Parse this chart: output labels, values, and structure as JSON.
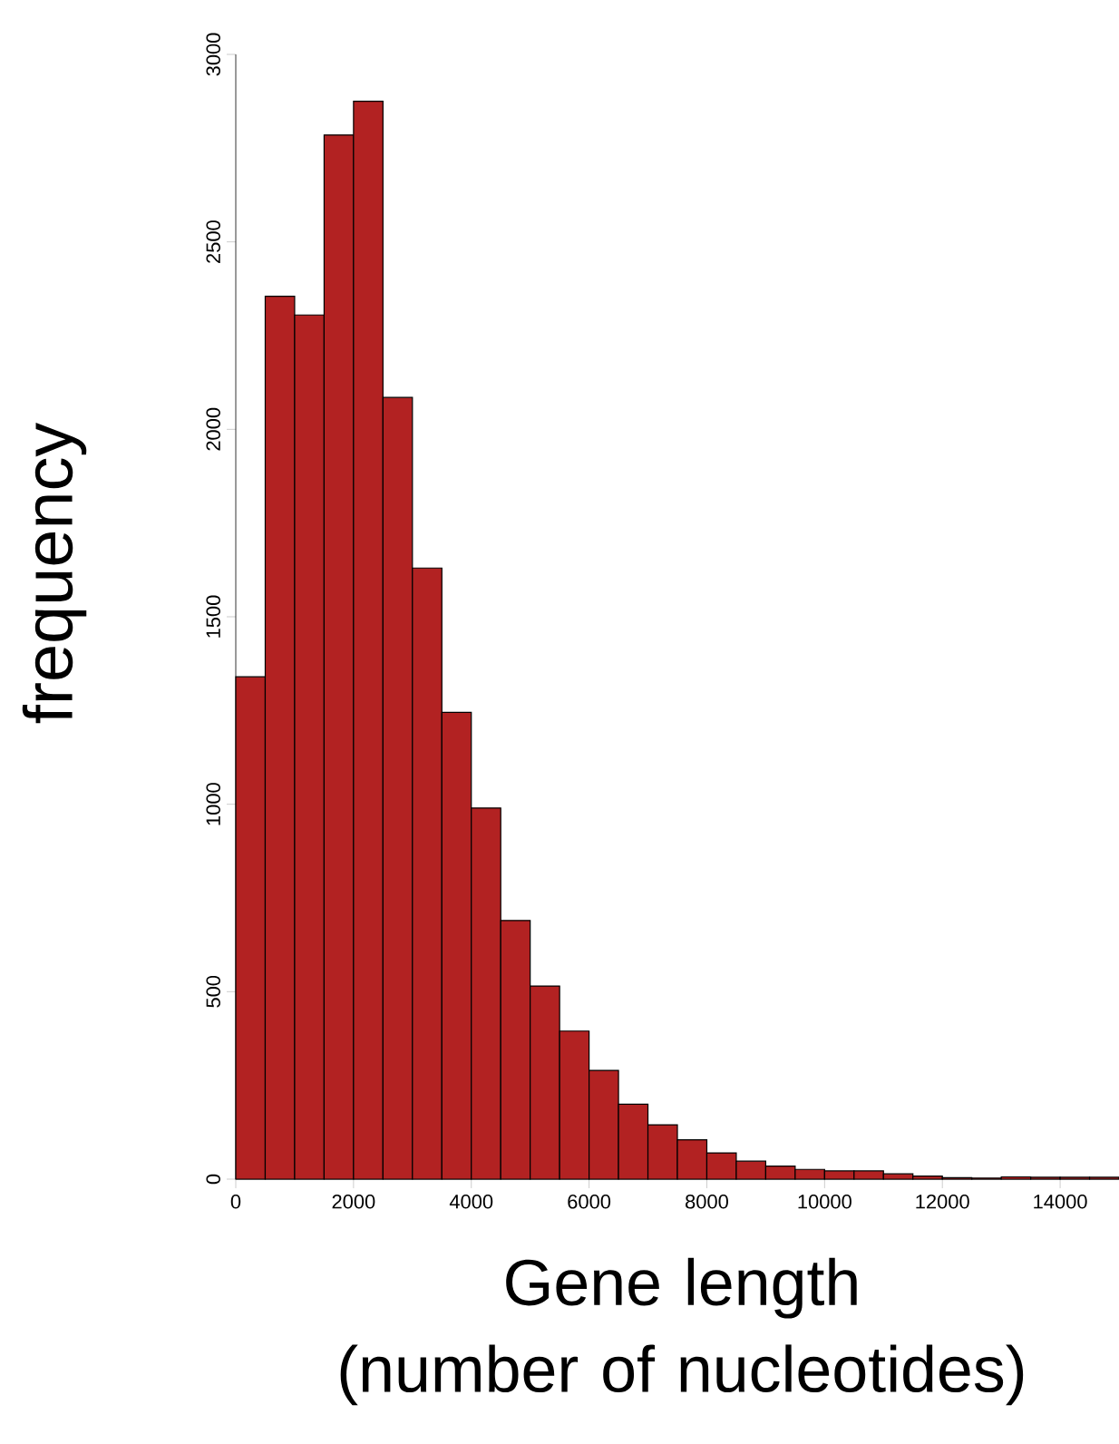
{
  "chart_data": {
    "type": "histogram",
    "xlabel": "Gene length\n(number of nucleotides)",
    "ylabel": "frequency",
    "bins": [
      0,
      500,
      1000,
      1500,
      2000,
      2500,
      3000,
      3500,
      4000,
      4500,
      5000,
      5500,
      6000,
      6500,
      7000,
      7500,
      8000,
      8500,
      9000,
      9500,
      10000,
      10500,
      11000,
      11500,
      12000,
      12500,
      13000,
      13500,
      14000,
      14500,
      15000
    ],
    "values": [
      1340,
      2355,
      2305,
      2785,
      2875,
      2085,
      1630,
      1245,
      990,
      690,
      515,
      395,
      290,
      200,
      145,
      105,
      70,
      48,
      35,
      26,
      22,
      22,
      14,
      8,
      4,
      3,
      6,
      5,
      5,
      5
    ],
    "color": "#b22222",
    "xlim": [
      0,
      15000
    ],
    "ylim": [
      0,
      3000
    ],
    "xticks": [
      0,
      2000,
      4000,
      6000,
      8000,
      10000,
      12000,
      14000
    ],
    "yticks": [
      0,
      500,
      1000,
      1500,
      2000,
      2500,
      3000
    ]
  }
}
